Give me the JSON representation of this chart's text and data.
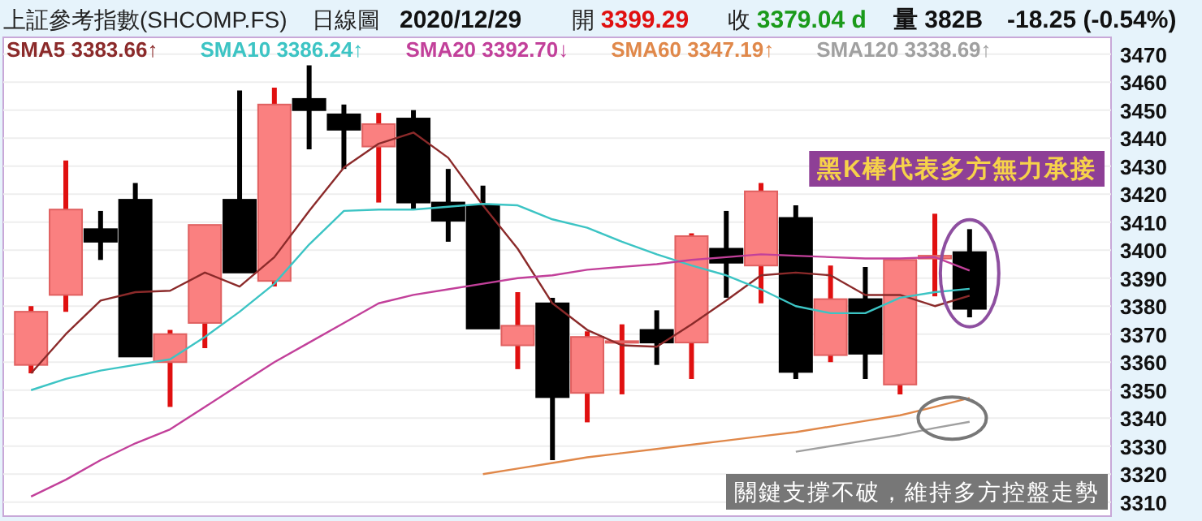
{
  "chart_data": {
    "type": "candlestick",
    "title": "上証參考指數(SHCOMP.FS)",
    "annotations": [
      "日線圖",
      "2020/12/29",
      "開 3399.29",
      "收 3379.04 d",
      "量 382B",
      "-18.25 (-0.54%)",
      "黑K棒代表多方無力承接",
      "關鍵支撐不破，維持多方控盤走勢"
    ],
    "categories": [
      null,
      null,
      null,
      null,
      null,
      null,
      null,
      null,
      null,
      null,
      null,
      null,
      null,
      null,
      null,
      null,
      null,
      null,
      null,
      null,
      null,
      null,
      null,
      null,
      null,
      null,
      null,
      null
    ],
    "ohlc": [
      [
        3359,
        3380,
        3356,
        3378
      ],
      [
        3384,
        3432,
        3378,
        3414.5
      ],
      [
        3407.5,
        3414,
        3396.5,
        3403
      ],
      [
        3418,
        3424,
        3362,
        3362
      ],
      [
        3360,
        3371.5,
        3344,
        3370
      ],
      [
        3374,
        3409,
        3365,
        3409
      ],
      [
        3418,
        3457,
        3392,
        3392
      ],
      [
        3389,
        3458,
        3387,
        3452
      ],
      [
        3454,
        3466,
        3436,
        3450
      ],
      [
        3448.5,
        3452,
        3429,
        3443
      ],
      [
        3437,
        3449,
        3417,
        3445
      ],
      [
        3447,
        3450,
        3414.5,
        3417
      ],
      [
        3417,
        3429,
        3403,
        3410.5
      ],
      [
        3416,
        3423,
        3372,
        3372
      ],
      [
        3366,
        3385,
        3357.5,
        3373
      ],
      [
        3381,
        3383,
        3325,
        3347.5
      ],
      [
        3349,
        3371,
        3338.5,
        3369
      ],
      [
        3367,
        3373.5,
        3348.5,
        3367.5
      ],
      [
        3371.5,
        3378.5,
        3359,
        3367
      ],
      [
        3367,
        3406,
        3354,
        3405
      ],
      [
        3400.5,
        3414,
        3383,
        3395.5
      ],
      [
        3394.5,
        3424,
        3381,
        3421
      ],
      [
        3411.5,
        3416,
        3354,
        3356.5
      ],
      [
        3362.5,
        3394.5,
        3360,
        3382.5
      ],
      [
        3382.5,
        3394,
        3354,
        3363
      ],
      [
        3352,
        3396.5,
        3348.5,
        3396.5
      ],
      [
        3397,
        3413,
        3383.5,
        3398
      ],
      [
        3399.29,
        3407.5,
        3376,
        3379.04
      ]
    ],
    "series": [
      {
        "name": "SMA5 3383.66↑",
        "type": "line",
        "color": "#8b2a2a",
        "values": [
          3356,
          3370,
          3382,
          3385,
          3385.5,
          3392,
          3387,
          3397.5,
          3414,
          3429.5,
          3438,
          3442,
          3433,
          3416,
          3400.5,
          3381,
          3371.5,
          3366,
          3365.5,
          3373.5,
          3382,
          3391,
          3392,
          3391,
          3384,
          3384,
          3380,
          3383.7
        ]
      },
      {
        "name": "SMA10 3386.24↑",
        "type": "line",
        "color": "#3cc4c4",
        "values": [
          3350,
          3354,
          3357,
          3359,
          3361,
          3369,
          3378,
          3388,
          3402,
          3414,
          3414.5,
          3414.5,
          3415.5,
          3416.5,
          3416,
          3411,
          3408,
          3403,
          3398.5,
          3394.5,
          3391,
          3386,
          3380,
          3377.5,
          3377.5,
          3383,
          3385,
          3386.2
        ]
      },
      {
        "name": "SMA20 3392.70↓",
        "type": "line",
        "color": "#c2409a",
        "values": [
          3312,
          3318,
          3325,
          3331,
          3336,
          3344,
          3352,
          3360,
          3367,
          3374,
          3381,
          3384,
          3386,
          3388,
          3390,
          3391,
          3393,
          3394,
          3395,
          3396.5,
          3397.5,
          3398.5,
          3398,
          3397.5,
          3397,
          3397,
          3397.5,
          3392.7
        ]
      },
      {
        "name": "SMA60 3347.19↑",
        "type": "line",
        "color": "#e0884a",
        "values": [
          null,
          null,
          null,
          null,
          null,
          null,
          null,
          null,
          null,
          null,
          null,
          null,
          null,
          3320,
          3322,
          3324,
          3326,
          3327.5,
          3329,
          3330.5,
          3332,
          3333.5,
          3335,
          3337,
          3339,
          3341,
          3344,
          3347.2
        ]
      },
      {
        "name": "SMA120 3338.69↑",
        "type": "line",
        "color": "#a0a0a0",
        "values": [
          null,
          null,
          null,
          null,
          null,
          null,
          null,
          null,
          null,
          null,
          null,
          null,
          null,
          null,
          null,
          null,
          null,
          null,
          null,
          null,
          null,
          null,
          3328,
          3330,
          3332,
          3334,
          3336.5,
          3338.7
        ]
      }
    ],
    "ylim": [
      3305,
      3476
    ],
    "yticks": [
      3310,
      3320,
      3330,
      3340,
      3350,
      3360,
      3370,
      3380,
      3390,
      3400,
      3410,
      3420,
      3430,
      3440,
      3450,
      3460,
      3470
    ],
    "grid": "y",
    "legend": "top"
  }
}
